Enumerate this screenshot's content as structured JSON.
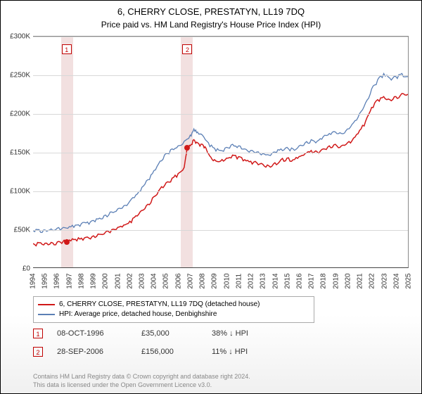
{
  "header": {
    "line1": "6, CHERRY CLOSE, PRESTATYN, LL19 7DQ",
    "line2": "Price paid vs. HM Land Registry's House Price Index (HPI)"
  },
  "chart": {
    "type": "line",
    "background_color": "#ffffff",
    "grid_color": "#d8d8d8",
    "y": {
      "min": 0,
      "max": 300000,
      "ticks": [
        0,
        50000,
        100000,
        150000,
        200000,
        250000,
        300000
      ],
      "tick_labels": [
        "£0",
        "£50K",
        "£100K",
        "£150K",
        "£200K",
        "£250K",
        "£300K"
      ],
      "label_fontsize": 10
    },
    "x": {
      "min": 1994,
      "max": 2025,
      "ticks": [
        1994,
        1995,
        1996,
        1997,
        1998,
        1999,
        2000,
        2001,
        2002,
        2003,
        2004,
        2005,
        2006,
        2007,
        2008,
        2009,
        2010,
        2011,
        2012,
        2013,
        2014,
        2015,
        2016,
        2017,
        2018,
        2019,
        2020,
        2021,
        2022,
        2023,
        2024,
        2025
      ],
      "label_fontsize": 10
    },
    "bands": [
      {
        "from": 1996.3,
        "to": 1997.3,
        "color": "#f2e0e0"
      },
      {
        "from": 2006.2,
        "to": 2007.2,
        "color": "#f2e0e0"
      }
    ],
    "markers": [
      {
        "id": "1",
        "x": 1996.77,
        "top_y": 290000
      },
      {
        "id": "2",
        "x": 2006.74,
        "top_y": 290000
      }
    ],
    "sale_points": [
      {
        "x": 1996.77,
        "y": 35000,
        "color": "#d01818"
      },
      {
        "x": 2006.74,
        "y": 156000,
        "color": "#d01818"
      }
    ],
    "series": [
      {
        "name": "property",
        "label": "6, CHERRY CLOSE, PRESTATYN, LL19 7DQ (detached house)",
        "color": "#d01818",
        "line_width": 1.5,
        "data": [
          [
            1994.0,
            31000
          ],
          [
            1994.5,
            32000
          ],
          [
            1995.0,
            31500
          ],
          [
            1995.5,
            32500
          ],
          [
            1996.0,
            33000
          ],
          [
            1996.5,
            34000
          ],
          [
            1996.77,
            35000
          ],
          [
            1997.0,
            35500
          ],
          [
            1997.5,
            36500
          ],
          [
            1998.0,
            38000
          ],
          [
            1998.5,
            39500
          ],
          [
            1999.0,
            41000
          ],
          [
            1999.5,
            43000
          ],
          [
            2000.0,
            46000
          ],
          [
            2000.5,
            49000
          ],
          [
            2001.0,
            52000
          ],
          [
            2001.5,
            55000
          ],
          [
            2002.0,
            60000
          ],
          [
            2002.5,
            67000
          ],
          [
            2003.0,
            74000
          ],
          [
            2003.5,
            82000
          ],
          [
            2004.0,
            92000
          ],
          [
            2004.5,
            102000
          ],
          [
            2005.0,
            110000
          ],
          [
            2005.5,
            116000
          ],
          [
            2006.0,
            122000
          ],
          [
            2006.5,
            130000
          ],
          [
            2006.74,
            156000
          ],
          [
            2007.0,
            158000
          ],
          [
            2007.3,
            166000
          ],
          [
            2007.6,
            162000
          ],
          [
            2008.0,
            160000
          ],
          [
            2008.3,
            155000
          ],
          [
            2008.6,
            145000
          ],
          [
            2009.0,
            140000
          ],
          [
            2009.5,
            138000
          ],
          [
            2010.0,
            142000
          ],
          [
            2010.5,
            146000
          ],
          [
            2011.0,
            144000
          ],
          [
            2011.5,
            140000
          ],
          [
            2012.0,
            138000
          ],
          [
            2012.5,
            136000
          ],
          [
            2013.0,
            134000
          ],
          [
            2013.5,
            132000
          ],
          [
            2014.0,
            136000
          ],
          [
            2014.5,
            140000
          ],
          [
            2015.0,
            142000
          ],
          [
            2015.5,
            140000
          ],
          [
            2016.0,
            144000
          ],
          [
            2016.5,
            148000
          ],
          [
            2017.0,
            152000
          ],
          [
            2017.5,
            150000
          ],
          [
            2018.0,
            154000
          ],
          [
            2018.5,
            158000
          ],
          [
            2019.0,
            160000
          ],
          [
            2019.5,
            158000
          ],
          [
            2020.0,
            162000
          ],
          [
            2020.5,
            168000
          ],
          [
            2021.0,
            178000
          ],
          [
            2021.5,
            190000
          ],
          [
            2022.0,
            208000
          ],
          [
            2022.5,
            218000
          ],
          [
            2023.0,
            222000
          ],
          [
            2023.5,
            218000
          ],
          [
            2024.0,
            222000
          ],
          [
            2024.5,
            226000
          ],
          [
            2025.0,
            225000
          ]
        ]
      },
      {
        "name": "hpi",
        "label": "HPI: Average price, detached house, Denbighshire",
        "color": "#5b7fb5",
        "line_width": 1.3,
        "data": [
          [
            1994.0,
            48000
          ],
          [
            1994.5,
            49000
          ],
          [
            1995.0,
            48500
          ],
          [
            1995.5,
            50000
          ],
          [
            1996.0,
            51000
          ],
          [
            1996.5,
            52000
          ],
          [
            1997.0,
            53000
          ],
          [
            1997.5,
            55000
          ],
          [
            1998.0,
            57000
          ],
          [
            1998.5,
            59000
          ],
          [
            1999.0,
            61000
          ],
          [
            1999.5,
            64000
          ],
          [
            2000.0,
            68000
          ],
          [
            2000.5,
            72000
          ],
          [
            2001.0,
            76000
          ],
          [
            2001.5,
            80000
          ],
          [
            2002.0,
            86000
          ],
          [
            2002.5,
            94000
          ],
          [
            2003.0,
            104000
          ],
          [
            2003.5,
            114000
          ],
          [
            2004.0,
            126000
          ],
          [
            2004.5,
            138000
          ],
          [
            2005.0,
            148000
          ],
          [
            2005.5,
            154000
          ],
          [
            2006.0,
            158000
          ],
          [
            2006.5,
            164000
          ],
          [
            2007.0,
            172000
          ],
          [
            2007.3,
            180000
          ],
          [
            2007.6,
            176000
          ],
          [
            2008.0,
            172000
          ],
          [
            2008.5,
            162000
          ],
          [
            2009.0,
            155000
          ],
          [
            2009.5,
            152000
          ],
          [
            2010.0,
            156000
          ],
          [
            2010.5,
            160000
          ],
          [
            2011.0,
            158000
          ],
          [
            2011.5,
            154000
          ],
          [
            2012.0,
            152000
          ],
          [
            2012.5,
            150000
          ],
          [
            2013.0,
            148000
          ],
          [
            2013.5,
            146000
          ],
          [
            2014.0,
            150000
          ],
          [
            2014.5,
            154000
          ],
          [
            2015.0,
            156000
          ],
          [
            2015.5,
            154000
          ],
          [
            2016.0,
            158000
          ],
          [
            2016.5,
            162000
          ],
          [
            2017.0,
            166000
          ],
          [
            2017.5,
            164000
          ],
          [
            2018.0,
            170000
          ],
          [
            2018.5,
            174000
          ],
          [
            2019.0,
            176000
          ],
          [
            2019.5,
            174000
          ],
          [
            2020.0,
            180000
          ],
          [
            2020.5,
            188000
          ],
          [
            2021.0,
            200000
          ],
          [
            2021.5,
            214000
          ],
          [
            2022.0,
            232000
          ],
          [
            2022.5,
            244000
          ],
          [
            2023.0,
            252000
          ],
          [
            2023.5,
            246000
          ],
          [
            2024.0,
            248000
          ],
          [
            2024.5,
            252000
          ],
          [
            2025.0,
            248000
          ]
        ]
      }
    ]
  },
  "legend": {
    "items": [
      {
        "color": "#d01818",
        "text": "6, CHERRY CLOSE, PRESTATYN, LL19 7DQ (detached house)"
      },
      {
        "color": "#5b7fb5",
        "text": "HPI: Average price, detached house, Denbighshire"
      }
    ]
  },
  "sales": [
    {
      "id": "1",
      "date": "08-OCT-1996",
      "price": "£35,000",
      "diff": "38% ↓ HPI"
    },
    {
      "id": "2",
      "date": "28-SEP-2006",
      "price": "£156,000",
      "diff": "11% ↓ HPI"
    }
  ],
  "footer": {
    "line1": "Contains HM Land Registry data © Crown copyright and database right 2024.",
    "line2": "This data is licensed under the Open Government Licence v3.0."
  }
}
